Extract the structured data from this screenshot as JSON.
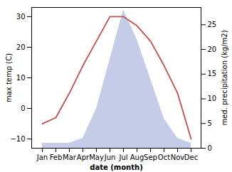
{
  "chart_data": {
    "type": "line",
    "xlabel": "date (month)",
    "ylabel": "max temp (C)",
    "y2label": "med. precipitation (kg/m2)",
    "categories": [
      "Jan",
      "Feb",
      "Mar",
      "Apr",
      "May",
      "Jun",
      "Jul",
      "Aug",
      "Sep",
      "Oct",
      "Nov",
      "Dec"
    ],
    "series": [
      {
        "type": "area",
        "axis": "y2",
        "color": "#c5cce8",
        "values": [
          1,
          1,
          1,
          2,
          8,
          18,
          28,
          22,
          14,
          6,
          2,
          1
        ]
      },
      {
        "type": "line",
        "color": "#c0504d",
        "values": [
          -5,
          -3,
          5,
          14,
          22,
          30,
          30,
          27,
          22,
          14,
          5,
          -10
        ]
      }
    ],
    "ylim": [
      -13,
      33
    ],
    "yticks": [
      -10,
      0,
      10,
      20,
      30
    ],
    "y2lim": [
      0,
      28.5
    ],
    "y2ticks": [
      0,
      5,
      10,
      15,
      20,
      25
    ],
    "grid": false
  }
}
